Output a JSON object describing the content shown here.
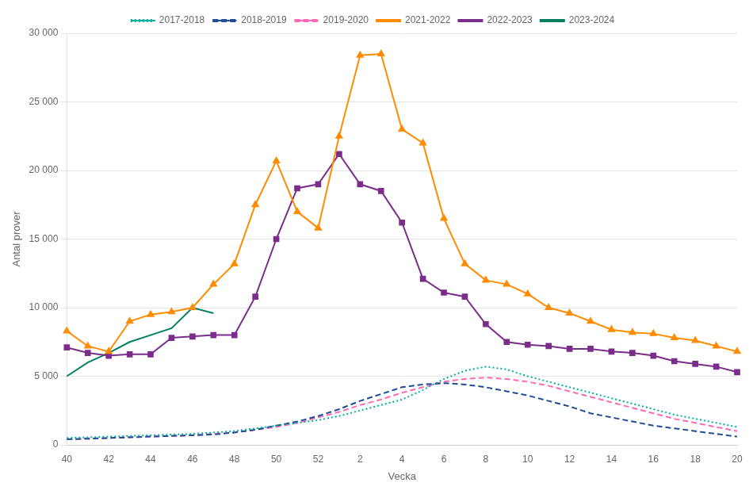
{
  "chart_data": {
    "type": "line",
    "xlabel": "Vecka",
    "ylabel": "Antal prover",
    "categories": [
      "40",
      null,
      "42",
      null,
      "44",
      null,
      "46",
      null,
      "48",
      null,
      "50",
      null,
      "52",
      null,
      "2",
      null,
      "4",
      null,
      "6",
      null,
      "8",
      null,
      "10",
      null,
      "12",
      null,
      "14",
      null,
      "16",
      null,
      "18",
      null,
      "20"
    ],
    "series": [
      {
        "name": "2017-2018",
        "color": "#00B0A0",
        "line_style": "dotted",
        "values": [
          500,
          550,
          600,
          650,
          700,
          750,
          800,
          900,
          1000,
          1200,
          1400,
          1600,
          1800,
          2100,
          2500,
          2900,
          3300,
          4000,
          4800,
          5400,
          5700,
          5500,
          5000,
          4600,
          4200,
          3800,
          3400,
          3000,
          2600,
          2200,
          1900,
          1600,
          1300
        ]
      },
      {
        "name": "2018-2019",
        "color": "#1F4E96",
        "line_style": "dashed",
        "values": [
          400,
          450,
          500,
          550,
          600,
          650,
          700,
          750,
          900,
          1100,
          1400,
          1700,
          2100,
          2600,
          3200,
          3700,
          4200,
          4400,
          4500,
          4400,
          4200,
          3900,
          3600,
          3200,
          2800,
          2300,
          2000,
          1700,
          1400,
          1200,
          1000,
          800,
          600
        ]
      },
      {
        "name": "2019-2020",
        "color": "#FF69B4",
        "line_style": "dashed",
        "values": [
          400,
          450,
          500,
          550,
          600,
          650,
          700,
          800,
          900,
          1100,
          1300,
          1600,
          2000,
          2400,
          2900,
          3300,
          3800,
          4200,
          4600,
          4800,
          4900,
          4800,
          4600,
          4300,
          3900,
          3500,
          3100,
          2700,
          2300,
          1900,
          1600,
          1300,
          1000
        ]
      },
      {
        "name": "2021-2022",
        "color": "#FF8C00",
        "line_style": "solid",
        "marker": "triangle",
        "values": [
          8300,
          7200,
          6800,
          9000,
          9500,
          9700,
          10000,
          11700,
          13200,
          17500,
          20700,
          17000,
          15800,
          22500,
          28400,
          28500,
          23000,
          22000,
          16500,
          13200,
          12000,
          11700,
          11000,
          10000,
          9600,
          9000,
          8400,
          8200,
          8100,
          7800,
          7600,
          7200,
          6800
        ]
      },
      {
        "name": "2022-2023",
        "color": "#7B2D8B",
        "line_style": "solid",
        "marker": "square",
        "values": [
          7100,
          6700,
          6500,
          6600,
          6600,
          7800,
          7900,
          8000,
          8000,
          10800,
          15000,
          18700,
          19000,
          21200,
          19000,
          18500,
          16200,
          12100,
          11100,
          10800,
          8800,
          7500,
          7300,
          7200,
          7000,
          7000,
          6800,
          6700,
          6500,
          6100,
          5900,
          5700,
          5300
        ]
      },
      {
        "name": "2023-2024",
        "color": "#008060",
        "line_style": "solid",
        "values": [
          5000,
          6000,
          6700,
          7500,
          8000,
          8500,
          10000,
          9600,
          null,
          null,
          null,
          null,
          null,
          null,
          null,
          null,
          null,
          null,
          null,
          null,
          null,
          null,
          null,
          null,
          null,
          null,
          null,
          null,
          null,
          null,
          null,
          null,
          null
        ]
      }
    ],
    "ylim": [
      0,
      30000
    ],
    "yticks": [
      0,
      {
        "value": 5000,
        "label": "5 000"
      },
      {
        "value": 10000,
        "label": "10 000"
      },
      {
        "value": 15000,
        "label": "15 000"
      },
      {
        "value": 20000,
        "label": "20 000"
      },
      {
        "value": 25000,
        "label": "25 000"
      },
      {
        "value": 30000,
        "label": "30 000"
      }
    ],
    "grid": "y",
    "legend": "top"
  }
}
